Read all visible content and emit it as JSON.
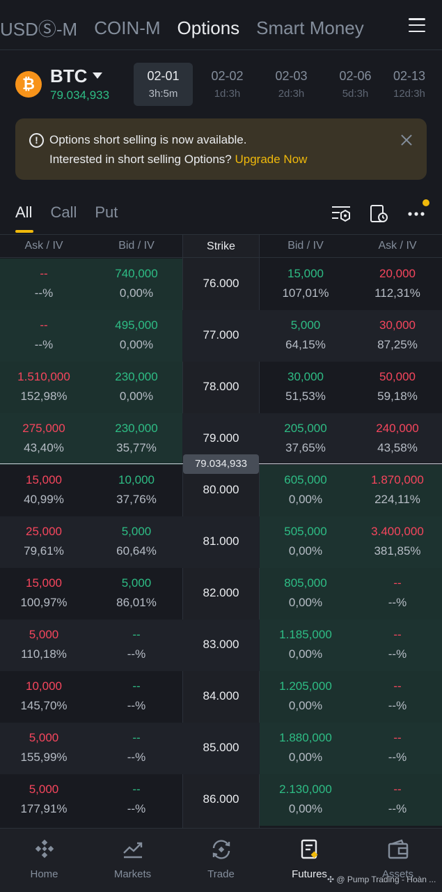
{
  "topnav": {
    "tabs": [
      {
        "label": "USDⓈ-M"
      },
      {
        "label": "COIN-M"
      },
      {
        "label": "Options"
      },
      {
        "label": "Smart Money"
      }
    ]
  },
  "asset": {
    "name": "BTC",
    "price": "79.034,933",
    "expiries": [
      {
        "date": "02-01",
        "time": "3h:5m"
      },
      {
        "date": "02-02",
        "time": "1d:3h"
      },
      {
        "date": "02-03",
        "time": "2d:3h"
      },
      {
        "date": "02-06",
        "time": "5d:3h"
      },
      {
        "date": "02-13",
        "time": "12d:3h"
      }
    ]
  },
  "banner": {
    "line1": "Options short selling is now available.",
    "line2": "Interested in short selling Options? ",
    "link": "Upgrade Now"
  },
  "filters": [
    "All",
    "Call",
    "Put"
  ],
  "table": {
    "headers": [
      "Ask / IV",
      "Bid / IV",
      "Strike",
      "Bid / IV",
      "Ask / IV"
    ],
    "underlying_tag": "79.034,933",
    "rows": [
      {
        "strike": "76.000",
        "call_ask": "--",
        "call_ask_iv": "--%",
        "call_bid": "740,000",
        "call_bid_iv": "0,00%",
        "put_bid": "15,000",
        "put_bid_iv": "107,01%",
        "put_ask": "20,000",
        "put_ask_iv": "112,31%"
      },
      {
        "strike": "77.000",
        "call_ask": "--",
        "call_ask_iv": "--%",
        "call_bid": "495,000",
        "call_bid_iv": "0,00%",
        "put_bid": "5,000",
        "put_bid_iv": "64,15%",
        "put_ask": "30,000",
        "put_ask_iv": "87,25%"
      },
      {
        "strike": "78.000",
        "call_ask": "1.510,000",
        "call_ask_iv": "152,98%",
        "call_bid": "230,000",
        "call_bid_iv": "0,00%",
        "put_bid": "30,000",
        "put_bid_iv": "51,53%",
        "put_ask": "50,000",
        "put_ask_iv": "59,18%"
      },
      {
        "strike": "79.000",
        "call_ask": "275,000",
        "call_ask_iv": "43,40%",
        "call_bid": "230,000",
        "call_bid_iv": "35,77%",
        "put_bid": "205,000",
        "put_bid_iv": "37,65%",
        "put_ask": "240,000",
        "put_ask_iv": "43,58%"
      },
      {
        "strike": "80.000",
        "call_ask": "15,000",
        "call_ask_iv": "40,99%",
        "call_bid": "10,000",
        "call_bid_iv": "37,76%",
        "put_bid": "605,000",
        "put_bid_iv": "0,00%",
        "put_ask": "1.870,000",
        "put_ask_iv": "224,11%"
      },
      {
        "strike": "81.000",
        "call_ask": "25,000",
        "call_ask_iv": "79,61%",
        "call_bid": "5,000",
        "call_bid_iv": "60,64%",
        "put_bid": "505,000",
        "put_bid_iv": "0,00%",
        "put_ask": "3.400,000",
        "put_ask_iv": "381,85%"
      },
      {
        "strike": "82.000",
        "call_ask": "15,000",
        "call_ask_iv": "100,97%",
        "call_bid": "5,000",
        "call_bid_iv": "86,01%",
        "put_bid": "805,000",
        "put_bid_iv": "0,00%",
        "put_ask": "--",
        "put_ask_iv": "--%"
      },
      {
        "strike": "83.000",
        "call_ask": "5,000",
        "call_ask_iv": "110,18%",
        "call_bid": "--",
        "call_bid_iv": "--%",
        "put_bid": "1.185,000",
        "put_bid_iv": "0,00%",
        "put_ask": "--",
        "put_ask_iv": "--%"
      },
      {
        "strike": "84.000",
        "call_ask": "10,000",
        "call_ask_iv": "145,70%",
        "call_bid": "--",
        "call_bid_iv": "--%",
        "put_bid": "1.205,000",
        "put_bid_iv": "0,00%",
        "put_ask": "--",
        "put_ask_iv": "--%"
      },
      {
        "strike": "85.000",
        "call_ask": "5,000",
        "call_ask_iv": "155,99%",
        "call_bid": "--",
        "call_bid_iv": "--%",
        "put_bid": "1.880,000",
        "put_bid_iv": "0,00%",
        "put_ask": "--",
        "put_ask_iv": "--%"
      },
      {
        "strike": "86.000",
        "call_ask": "5,000",
        "call_ask_iv": "177,91%",
        "call_bid": "--",
        "call_bid_iv": "--%",
        "put_bid": "2.130,000",
        "put_bid_iv": "0,00%",
        "put_ask": "--",
        "put_ask_iv": "--%"
      }
    ]
  },
  "bottomnav": [
    {
      "label": "Home",
      "icon": "home-icon"
    },
    {
      "label": "Markets",
      "icon": "markets-icon"
    },
    {
      "label": "Trade",
      "icon": "trade-icon"
    },
    {
      "label": "Futures",
      "icon": "futures-icon"
    },
    {
      "label": "Assets",
      "icon": "assets-icon"
    }
  ],
  "watermark": "@ Pump Trading - Hoàn ...",
  "colors": {
    "green": "#2ebd85",
    "red": "#f6465d",
    "accent": "#f0b90b",
    "background": "#181a20"
  }
}
